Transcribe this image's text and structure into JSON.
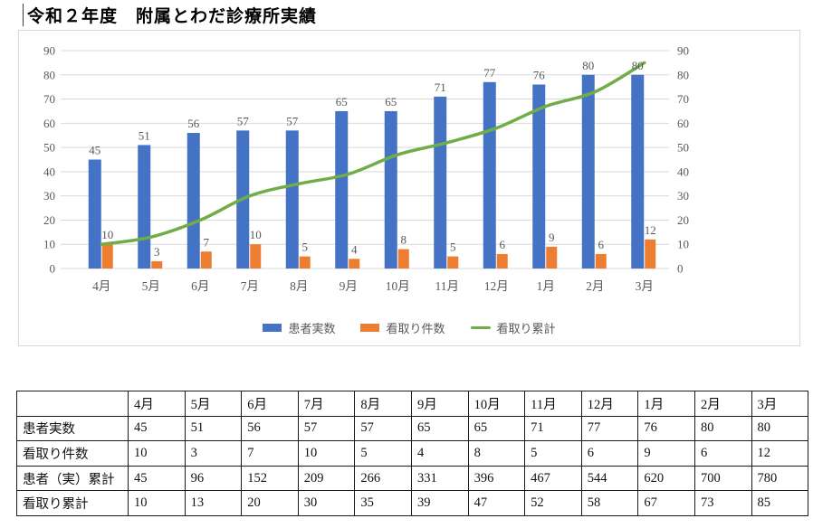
{
  "title": "令和２年度　附属とわだ診療所実績",
  "chart_data": {
    "type": "combo",
    "title": "",
    "categories": [
      "4月",
      "5月",
      "6月",
      "7月",
      "8月",
      "9月",
      "10月",
      "11月",
      "12月",
      "1月",
      "2月",
      "3月"
    ],
    "series": [
      {
        "name": "患者実数",
        "type": "bar",
        "color": "#4472C4",
        "values": [
          45,
          51,
          56,
          57,
          57,
          65,
          65,
          71,
          77,
          76,
          80,
          80
        ],
        "data_labels": true
      },
      {
        "name": "看取り件数",
        "type": "bar",
        "color": "#ED7D31",
        "values": [
          10,
          3,
          7,
          10,
          5,
          4,
          8,
          5,
          6,
          9,
          6,
          12
        ],
        "data_labels": true
      },
      {
        "name": "看取り累計",
        "type": "line",
        "color": "#70AD47",
        "values": [
          10,
          13,
          20,
          30,
          35,
          39,
          47,
          52,
          58,
          67,
          73,
          85
        ],
        "data_labels": false
      }
    ],
    "ylim": [
      0,
      90
    ],
    "yticks": [
      0,
      10,
      20,
      30,
      40,
      50,
      60,
      70,
      80,
      90
    ],
    "secondary_yticks": [
      0,
      10,
      20,
      30,
      40,
      50,
      60,
      70,
      80,
      90
    ],
    "grid": true,
    "legend_position": "bottom"
  },
  "table": {
    "columns": [
      "",
      "4月",
      "5月",
      "6月",
      "7月",
      "8月",
      "9月",
      "10月",
      "11月",
      "12月",
      "1月",
      "2月",
      "3月"
    ],
    "rows": [
      {
        "label": "患者実数",
        "values": [
          45,
          51,
          56,
          57,
          57,
          65,
          65,
          71,
          77,
          76,
          80,
          80
        ]
      },
      {
        "label": "看取り件数",
        "values": [
          10,
          3,
          7,
          10,
          5,
          4,
          8,
          5,
          6,
          9,
          6,
          12
        ]
      },
      {
        "label": "患者（実）累計",
        "values": [
          45,
          96,
          152,
          209,
          266,
          331,
          396,
          467,
          544,
          620,
          700,
          780
        ]
      },
      {
        "label": "看取り累計",
        "values": [
          10,
          13,
          20,
          30,
          35,
          39,
          47,
          52,
          58,
          67,
          73,
          85
        ]
      }
    ]
  },
  "colors": {
    "axis_text": "#595959",
    "gridline": "#D9D9D9",
    "chart_border": "#D9D9D9",
    "table_border": "#1a1a1a",
    "title_text": "#000000"
  }
}
